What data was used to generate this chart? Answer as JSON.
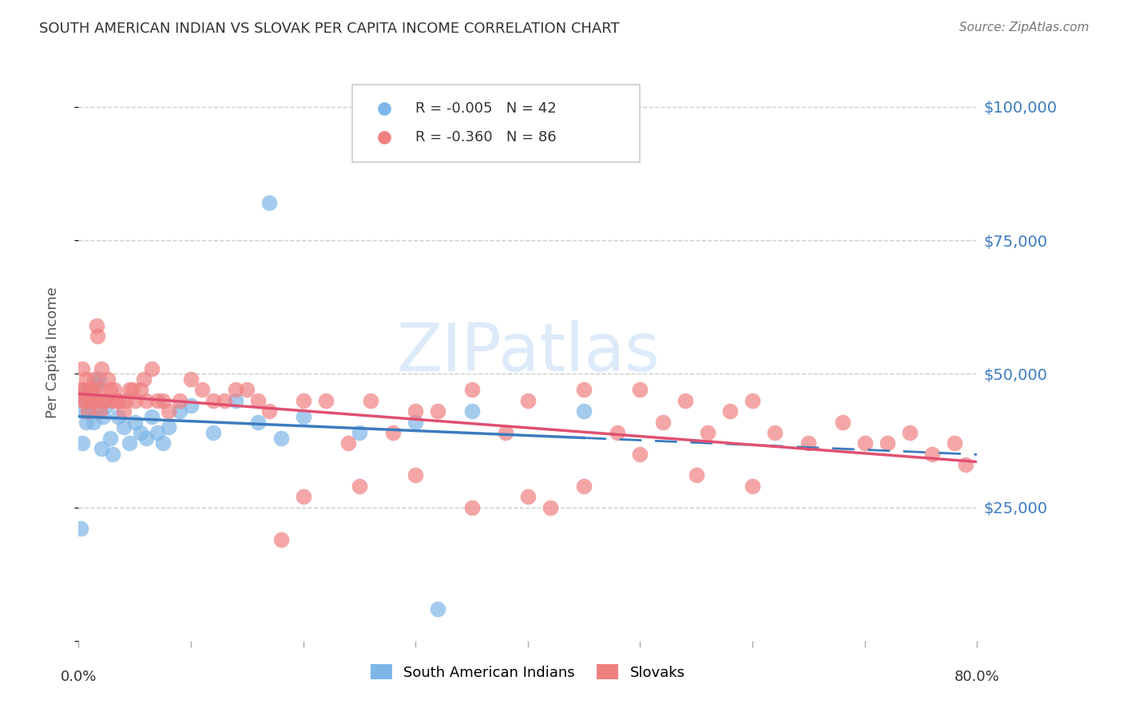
{
  "title": "SOUTH AMERICAN INDIAN VS SLOVAK PER CAPITA INCOME CORRELATION CHART",
  "source": "Source: ZipAtlas.com",
  "ylabel": "Per Capita Income",
  "yticks": [
    0,
    25000,
    50000,
    75000,
    100000
  ],
  "ytick_labels": [
    "",
    "$25,000",
    "$50,000",
    "$75,000",
    "$100,000"
  ],
  "xmin": 0.0,
  "xmax": 0.8,
  "ymin": 0,
  "ymax": 108000,
  "blue_label": "South American Indians",
  "pink_label": "Slovaks",
  "blue_R": "R = -0.005",
  "blue_N": "N = 42",
  "pink_R": "R = -0.360",
  "pink_N": "N = 86",
  "blue_color": "#7EB6E8",
  "pink_color": "#F08080",
  "line_blue": "#3B7BBF",
  "line_pink": "#E05070",
  "blue_x": [
    0.002,
    0.003,
    0.004,
    0.005,
    0.006,
    0.007,
    0.008,
    0.009,
    0.01,
    0.012,
    0.013,
    0.015,
    0.016,
    0.018,
    0.02,
    0.022,
    0.025,
    0.028,
    0.03,
    0.035,
    0.04,
    0.045,
    0.05,
    0.055,
    0.06,
    0.065,
    0.07,
    0.075,
    0.08,
    0.09,
    0.1,
    0.12,
    0.14,
    0.16,
    0.18,
    0.2,
    0.25,
    0.3,
    0.35,
    0.45,
    0.17,
    0.32
  ],
  "blue_y": [
    21000,
    37000,
    46000,
    43000,
    45000,
    41000,
    47000,
    43000,
    47000,
    45000,
    41000,
    43000,
    48000,
    49000,
    36000,
    42000,
    44000,
    38000,
    35000,
    42000,
    40000,
    37000,
    41000,
    39000,
    38000,
    42000,
    39000,
    37000,
    40000,
    43000,
    44000,
    39000,
    45000,
    41000,
    38000,
    42000,
    39000,
    41000,
    43000,
    43000,
    82000,
    6000
  ],
  "pink_x": [
    0.002,
    0.003,
    0.004,
    0.005,
    0.006,
    0.007,
    0.008,
    0.009,
    0.01,
    0.011,
    0.012,
    0.013,
    0.014,
    0.015,
    0.016,
    0.017,
    0.018,
    0.019,
    0.02,
    0.022,
    0.024,
    0.026,
    0.028,
    0.03,
    0.032,
    0.034,
    0.036,
    0.04,
    0.042,
    0.045,
    0.048,
    0.05,
    0.055,
    0.058,
    0.06,
    0.065,
    0.07,
    0.075,
    0.08,
    0.09,
    0.1,
    0.11,
    0.12,
    0.13,
    0.14,
    0.15,
    0.16,
    0.17,
    0.18,
    0.2,
    0.22,
    0.24,
    0.26,
    0.28,
    0.3,
    0.32,
    0.35,
    0.38,
    0.4,
    0.42,
    0.45,
    0.48,
    0.5,
    0.52,
    0.54,
    0.56,
    0.58,
    0.6,
    0.62,
    0.65,
    0.68,
    0.7,
    0.72,
    0.74,
    0.76,
    0.78,
    0.79,
    0.6,
    0.55,
    0.5,
    0.45,
    0.4,
    0.35,
    0.3,
    0.25,
    0.2
  ],
  "pink_y": [
    47000,
    51000,
    45000,
    47000,
    45000,
    49000,
    43000,
    47000,
    45000,
    47000,
    45000,
    47000,
    49000,
    45000,
    59000,
    57000,
    47000,
    43000,
    51000,
    45000,
    45000,
    49000,
    47000,
    45000,
    47000,
    45000,
    45000,
    43000,
    45000,
    47000,
    47000,
    45000,
    47000,
    49000,
    45000,
    51000,
    45000,
    45000,
    43000,
    45000,
    49000,
    47000,
    45000,
    45000,
    47000,
    47000,
    45000,
    43000,
    19000,
    45000,
    45000,
    37000,
    45000,
    39000,
    43000,
    43000,
    47000,
    39000,
    45000,
    25000,
    47000,
    39000,
    47000,
    41000,
    45000,
    39000,
    43000,
    45000,
    39000,
    37000,
    41000,
    37000,
    37000,
    39000,
    35000,
    37000,
    33000,
    29000,
    31000,
    35000,
    29000,
    27000,
    25000,
    31000,
    29000,
    27000
  ]
}
